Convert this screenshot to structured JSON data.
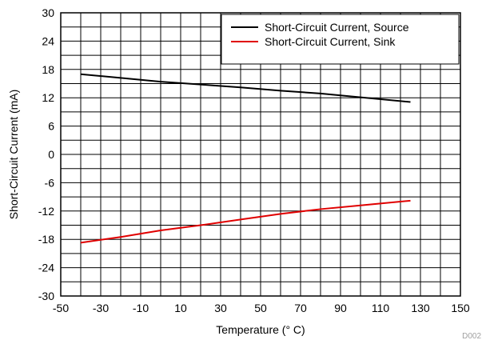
{
  "chart_data": {
    "type": "line",
    "title": "",
    "xlabel": "Temperature (° C)",
    "ylabel": "Short-Circuit Current (mA)",
    "xlim": [
      -50,
      150
    ],
    "ylim": [
      -30,
      30
    ],
    "x_ticks": [
      -50,
      -30,
      -10,
      10,
      30,
      50,
      70,
      90,
      110,
      130,
      150
    ],
    "y_ticks": [
      30,
      24,
      18,
      12,
      6,
      0,
      -6,
      -12,
      -18,
      -24,
      -30
    ],
    "x_minor_step": 10,
    "y_minor_step": 3,
    "grid": true,
    "legend_position": "top-right",
    "series": [
      {
        "name": "Short-Circuit Current, Source",
        "color": "#000000",
        "x": [
          -40,
          -20,
          0,
          20,
          40,
          60,
          80,
          100,
          125
        ],
        "y": [
          17.0,
          16.2,
          15.4,
          14.8,
          14.2,
          13.5,
          12.9,
          12.1,
          11.1
        ]
      },
      {
        "name": "Short-Circuit Current, Sink",
        "color": "#e00000",
        "x": [
          -40,
          -20,
          0,
          20,
          40,
          60,
          80,
          100,
          125
        ],
        "y": [
          -18.7,
          -17.5,
          -16.1,
          -15.0,
          -13.8,
          -12.6,
          -11.6,
          -10.8,
          -9.8
        ]
      }
    ],
    "watermark": "D002"
  }
}
